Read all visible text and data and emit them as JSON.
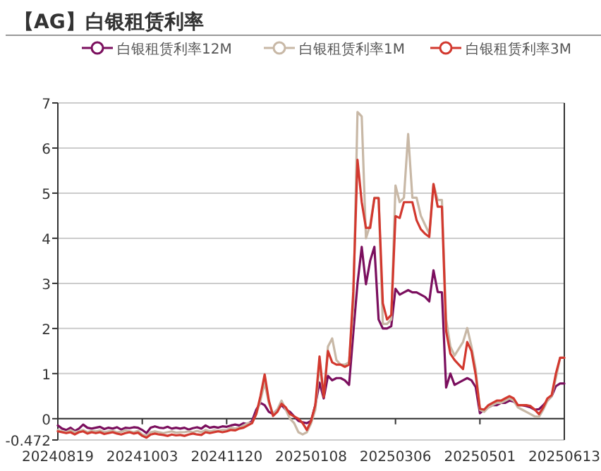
{
  "chart_data": {
    "type": "line",
    "title": "【AG】白银租赁利率",
    "legend": "top",
    "grid": "y",
    "ylim": [
      -0.472,
      7
    ],
    "yticks": [
      -0.472,
      0,
      1,
      2,
      3,
      4,
      5,
      6,
      7
    ],
    "categories": [
      "20240819",
      null,
      null,
      null,
      null,
      null,
      null,
      null,
      null,
      null,
      null,
      null,
      null,
      null,
      null,
      null,
      null,
      null,
      null,
      null,
      "20241003",
      null,
      null,
      null,
      null,
      null,
      null,
      null,
      null,
      null,
      null,
      null,
      null,
      null,
      null,
      null,
      null,
      null,
      null,
      null,
      "20241120",
      null,
      null,
      null,
      null,
      null,
      null,
      null,
      null,
      null,
      null,
      null,
      null,
      null,
      null,
      null,
      null,
      null,
      null,
      null,
      "20250108",
      null,
      null,
      null,
      null,
      null,
      null,
      null,
      null,
      null,
      null,
      null,
      null,
      null,
      null,
      null,
      null,
      null,
      null,
      null,
      "20250306",
      null,
      null,
      null,
      null,
      null,
      null,
      null,
      null,
      null,
      null,
      null,
      null,
      null,
      null,
      null,
      null,
      null,
      null,
      null,
      "20250501",
      null,
      null,
      null,
      null,
      null,
      null,
      null,
      null,
      null,
      null,
      null,
      null,
      null,
      null,
      null,
      null,
      null,
      null,
      null,
      "20250613"
    ],
    "series": [
      {
        "name": "白银租赁利率12M",
        "color": "#7b0f5e",
        "values": [
          -0.15,
          -0.22,
          -0.25,
          -0.2,
          -0.27,
          -0.22,
          -0.13,
          -0.2,
          -0.22,
          -0.2,
          -0.18,
          -0.23,
          -0.2,
          -0.22,
          -0.19,
          -0.24,
          -0.2,
          -0.21,
          -0.19,
          -0.2,
          -0.25,
          -0.32,
          -0.2,
          -0.17,
          -0.2,
          -0.21,
          -0.18,
          -0.22,
          -0.2,
          -0.22,
          -0.2,
          -0.24,
          -0.21,
          -0.19,
          -0.22,
          -0.15,
          -0.2,
          -0.18,
          -0.2,
          -0.17,
          -0.18,
          -0.15,
          -0.13,
          -0.15,
          -0.1,
          -0.12,
          -0.05,
          0.2,
          0.35,
          0.3,
          0.15,
          0.1,
          0.2,
          0.3,
          0.2,
          0.15,
          0.05,
          -0.05,
          -0.08,
          -0.1,
          -0.05,
          0.3,
          0.8,
          0.45,
          0.95,
          0.85,
          0.9,
          0.9,
          0.85,
          0.75,
          1.9,
          3.0,
          3.81,
          2.98,
          3.5,
          3.81,
          2.2,
          2.0,
          2.0,
          2.05,
          2.88,
          2.75,
          2.8,
          2.85,
          2.8,
          2.8,
          2.75,
          2.7,
          2.6,
          3.29,
          2.81,
          2.8,
          0.69,
          1.0,
          0.75,
          0.8,
          0.85,
          0.9,
          0.85,
          0.7,
          0.12,
          0.2,
          0.25,
          0.3,
          0.3,
          0.35,
          0.35,
          0.4,
          0.38,
          0.3,
          0.3,
          0.28,
          0.25,
          0.2,
          0.21,
          0.3,
          0.4,
          0.5,
          0.72,
          0.78,
          0.78
        ]
      },
      {
        "name": "白银租赁利率1M",
        "color": "#c8b8a6",
        "values": [
          -0.25,
          -0.28,
          -0.3,
          -0.25,
          -0.3,
          -0.28,
          -0.25,
          -0.3,
          -0.27,
          -0.28,
          -0.26,
          -0.3,
          -0.28,
          -0.27,
          -0.3,
          -0.29,
          -0.26,
          -0.28,
          -0.3,
          -0.27,
          -0.35,
          -0.38,
          -0.3,
          -0.28,
          -0.3,
          -0.32,
          -0.3,
          -0.28,
          -0.31,
          -0.3,
          -0.3,
          -0.28,
          -0.3,
          -0.27,
          -0.3,
          -0.25,
          -0.28,
          -0.26,
          -0.27,
          -0.25,
          -0.25,
          -0.2,
          -0.22,
          -0.2,
          -0.15,
          -0.1,
          -0.1,
          0.1,
          0.4,
          0.8,
          0.35,
          0.1,
          0.2,
          0.4,
          0.2,
          0.0,
          -0.1,
          -0.3,
          -0.35,
          -0.3,
          -0.1,
          0.2,
          1.2,
          0.5,
          1.6,
          1.78,
          1.3,
          1.2,
          1.2,
          1.25,
          2.5,
          6.8,
          6.7,
          4.0,
          4.3,
          4.9,
          4.9,
          2.1,
          2.1,
          2.2,
          5.17,
          4.8,
          4.9,
          6.31,
          4.9,
          4.9,
          4.5,
          4.3,
          4.1,
          5.2,
          4.85,
          4.85,
          2.2,
          1.6,
          1.4,
          1.55,
          1.7,
          2.01,
          1.6,
          1.1,
          0.2,
          0.15,
          0.25,
          0.3,
          0.35,
          0.35,
          0.4,
          0.45,
          0.4,
          0.25,
          0.2,
          0.15,
          0.1,
          0.05,
          0.04,
          0.2,
          0.4,
          0.5,
          0.9,
          1.35,
          1.35
        ]
      },
      {
        "name": "白银租赁利率3M",
        "color": "#d2382e",
        "values": [
          -0.28,
          -0.3,
          -0.32,
          -0.3,
          -0.35,
          -0.3,
          -0.28,
          -0.33,
          -0.3,
          -0.32,
          -0.3,
          -0.34,
          -0.32,
          -0.3,
          -0.33,
          -0.35,
          -0.32,
          -0.3,
          -0.33,
          -0.31,
          -0.38,
          -0.42,
          -0.35,
          -0.33,
          -0.35,
          -0.36,
          -0.38,
          -0.35,
          -0.37,
          -0.36,
          -0.38,
          -0.35,
          -0.33,
          -0.35,
          -0.36,
          -0.3,
          -0.32,
          -0.3,
          -0.28,
          -0.3,
          -0.28,
          -0.25,
          -0.26,
          -0.22,
          -0.2,
          -0.15,
          -0.1,
          0.1,
          0.5,
          0.98,
          0.4,
          0.06,
          0.15,
          0.33,
          0.25,
          0.1,
          0.05,
          0.0,
          -0.1,
          -0.25,
          -0.05,
          0.3,
          1.38,
          0.48,
          1.5,
          1.25,
          1.2,
          1.2,
          1.15,
          1.2,
          2.82,
          5.74,
          4.8,
          4.23,
          4.23,
          4.89,
          4.89,
          2.56,
          2.2,
          2.3,
          4.49,
          4.45,
          4.8,
          4.8,
          4.8,
          4.4,
          4.2,
          4.1,
          4.03,
          5.2,
          4.7,
          4.7,
          1.94,
          1.44,
          1.3,
          1.2,
          1.1,
          1.7,
          1.5,
          0.97,
          0.22,
          0.2,
          0.3,
          0.35,
          0.4,
          0.4,
          0.45,
          0.5,
          0.45,
          0.3,
          0.3,
          0.3,
          0.28,
          0.2,
          0.1,
          0.25,
          0.45,
          0.52,
          1.0,
          1.35,
          1.35
        ]
      }
    ]
  }
}
